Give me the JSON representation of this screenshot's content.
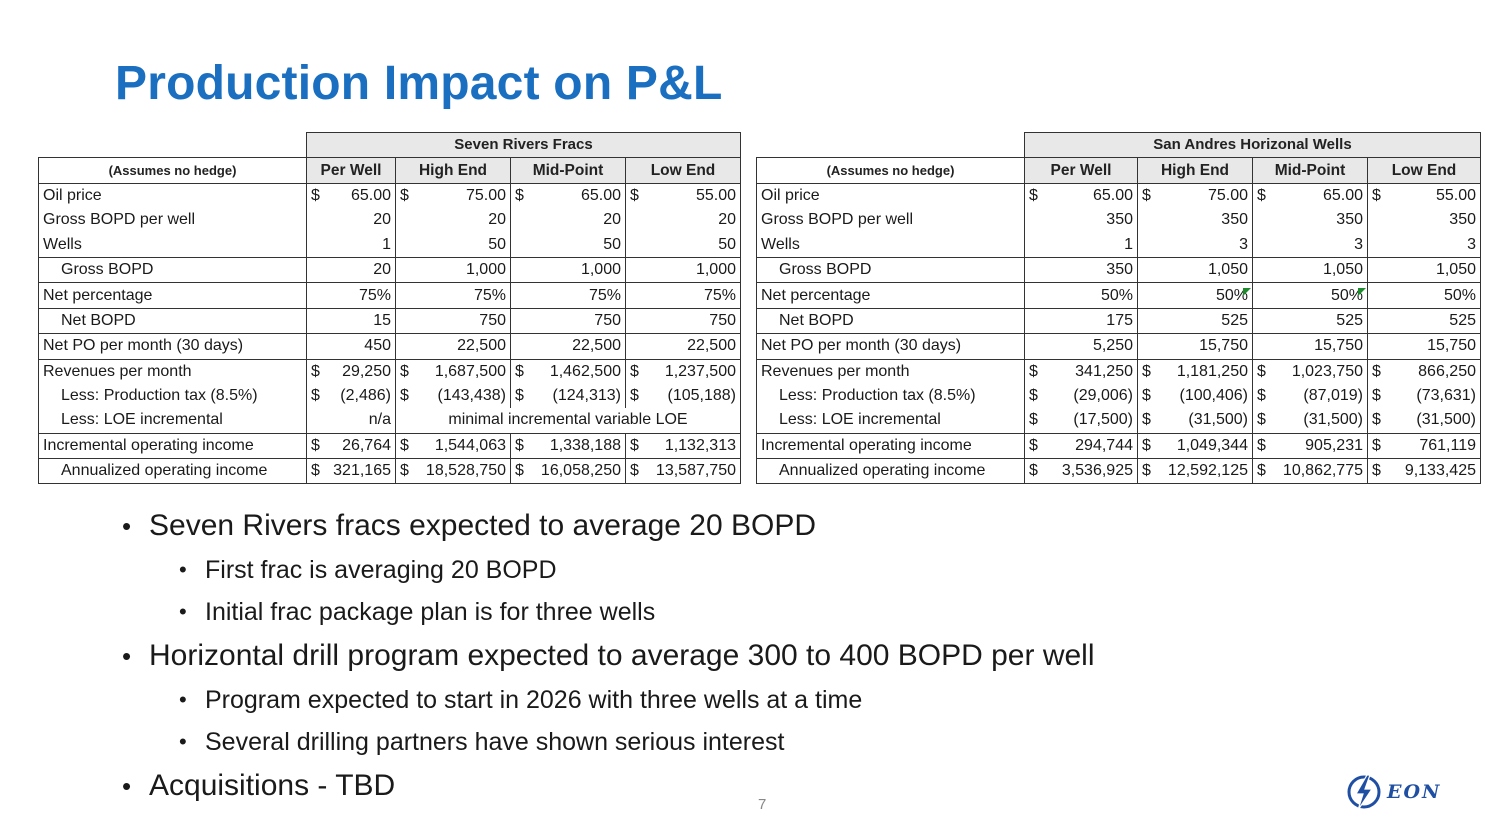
{
  "title": "Production Impact on P&L",
  "left_table": {
    "group_header": "Seven Rivers Fracs",
    "label_header": "(Assumes no hedge)",
    "columns": [
      "Per Well",
      "High End",
      "Mid-Point",
      "Low End"
    ],
    "rows": [
      {
        "label": "Oil price",
        "cells": [
          [
            "$",
            "65.00"
          ],
          [
            "$",
            "75.00"
          ],
          [
            "$",
            "65.00"
          ],
          [
            "$",
            "55.00"
          ]
        ]
      },
      {
        "label": "Gross BOPD per well",
        "cells": [
          [
            "",
            "20"
          ],
          [
            "",
            "20"
          ],
          [
            "",
            "20"
          ],
          [
            "",
            "20"
          ]
        ]
      },
      {
        "label": "Wells",
        "cells": [
          [
            "",
            "1"
          ],
          [
            "",
            "50"
          ],
          [
            "",
            "50"
          ],
          [
            "",
            "50"
          ]
        ]
      },
      {
        "label": "Gross BOPD",
        "cells": [
          [
            "",
            "20"
          ],
          [
            "",
            "1,000"
          ],
          [
            "",
            "1,000"
          ],
          [
            "",
            "1,000"
          ]
        ]
      },
      {
        "label": "Net percentage",
        "cells": [
          [
            "",
            "75%"
          ],
          [
            "",
            "75%"
          ],
          [
            "",
            "75%"
          ],
          [
            "",
            "75%"
          ]
        ]
      },
      {
        "label": "Net BOPD",
        "cells": [
          [
            "",
            "15"
          ],
          [
            "",
            "750"
          ],
          [
            "",
            "750"
          ],
          [
            "",
            "750"
          ]
        ]
      },
      {
        "label": "Net PO per month (30 days)",
        "cells": [
          [
            "",
            "450"
          ],
          [
            "",
            "22,500"
          ],
          [
            "",
            "22,500"
          ],
          [
            "",
            "22,500"
          ]
        ]
      },
      {
        "label": "Revenues per month",
        "cells": [
          [
            "$",
            "29,250"
          ],
          [
            "$",
            "1,687,500"
          ],
          [
            "$",
            "1,462,500"
          ],
          [
            "$",
            "1,237,500"
          ]
        ]
      },
      {
        "label": "Less: Production tax (8.5%)",
        "cells": [
          [
            "$",
            "(2,486)"
          ],
          [
            "$",
            "(143,438)"
          ],
          [
            "$",
            "(124,313)"
          ],
          [
            "$",
            "(105,188)"
          ]
        ]
      },
      {
        "label": "Less: LOE incremental",
        "cells": [
          [
            "",
            "n/a"
          ]
        ],
        "merged_text": "minimal incremental variable LOE"
      },
      {
        "label": "Incremental operating income",
        "cells": [
          [
            "$",
            "26,764"
          ],
          [
            "$",
            "1,544,063"
          ],
          [
            "$",
            "1,338,188"
          ],
          [
            "$",
            "1,132,313"
          ]
        ]
      },
      {
        "label": "Annualized operating income",
        "cells": [
          [
            "$",
            "321,165"
          ],
          [
            "$",
            "18,528,750"
          ],
          [
            "$",
            "16,058,250"
          ],
          [
            "$",
            "13,587,750"
          ]
        ]
      }
    ]
  },
  "right_table": {
    "group_header": "San Andres Horizonal Wells",
    "label_header": "(Assumes no hedge)",
    "columns": [
      "Per Well",
      "High End",
      "Mid-Point",
      "Low End"
    ],
    "rows": [
      {
        "label": "Oil price",
        "cells": [
          [
            "$",
            "65.00"
          ],
          [
            "$",
            "75.00"
          ],
          [
            "$",
            "65.00"
          ],
          [
            "$",
            "55.00"
          ]
        ]
      },
      {
        "label": "Gross BOPD per well",
        "cells": [
          [
            "",
            "350"
          ],
          [
            "",
            "350"
          ],
          [
            "",
            "350"
          ],
          [
            "",
            "350"
          ]
        ]
      },
      {
        "label": "Wells",
        "cells": [
          [
            "",
            "1"
          ],
          [
            "",
            "3"
          ],
          [
            "",
            "3"
          ],
          [
            "",
            "3"
          ]
        ]
      },
      {
        "label": "Gross BOPD",
        "cells": [
          [
            "",
            "350"
          ],
          [
            "",
            "1,050"
          ],
          [
            "",
            "1,050"
          ],
          [
            "",
            "1,050"
          ]
        ]
      },
      {
        "label": "Net percentage",
        "cells": [
          [
            "",
            "50%"
          ],
          [
            "",
            "50%"
          ],
          [
            "",
            "50%"
          ],
          [
            "",
            "50%"
          ]
        ]
      },
      {
        "label": "Net BOPD",
        "cells": [
          [
            "",
            "175"
          ],
          [
            "",
            "525"
          ],
          [
            "",
            "525"
          ],
          [
            "",
            "525"
          ]
        ]
      },
      {
        "label": "Net PO per month (30 days)",
        "cells": [
          [
            "",
            "5,250"
          ],
          [
            "",
            "15,750"
          ],
          [
            "",
            "15,750"
          ],
          [
            "",
            "15,750"
          ]
        ]
      },
      {
        "label": "Revenues per month",
        "cells": [
          [
            "$",
            "341,250"
          ],
          [
            "$",
            "1,181,250"
          ],
          [
            "$",
            "1,023,750"
          ],
          [
            "$",
            "866,250"
          ]
        ]
      },
      {
        "label": "Less: Production tax (8.5%)",
        "cells": [
          [
            "$",
            "(29,006)"
          ],
          [
            "$",
            "(100,406)"
          ],
          [
            "$",
            "(87,019)"
          ],
          [
            "$",
            "(73,631)"
          ]
        ]
      },
      {
        "label": "Less: LOE incremental",
        "cells": [
          [
            "$",
            "(17,500)"
          ],
          [
            "$",
            "(31,500)"
          ],
          [
            "$",
            "(31,500)"
          ],
          [
            "$",
            "(31,500)"
          ]
        ]
      },
      {
        "label": "Incremental operating income",
        "cells": [
          [
            "$",
            "294,744"
          ],
          [
            "$",
            "1,049,344"
          ],
          [
            "$",
            "905,231"
          ],
          [
            "$",
            "761,119"
          ]
        ]
      },
      {
        "label": "Annualized operating income",
        "cells": [
          [
            "$",
            "3,536,925"
          ],
          [
            "$",
            "12,592,125"
          ],
          [
            "$",
            "10,862,775"
          ],
          [
            "$",
            "9,133,425"
          ]
        ]
      }
    ]
  },
  "bullets": [
    {
      "level": 1,
      "text": "Seven Rivers fracs expected to average 20 BOPD"
    },
    {
      "level": 2,
      "text": "First frac is averaging 20 BOPD"
    },
    {
      "level": 2,
      "text": "Initial frac package plan is for three wells"
    },
    {
      "level": 1,
      "text": "Horizontal drill program expected to average 300 to 400 BOPD per well"
    },
    {
      "level": 2,
      "text": "Program expected to start in 2026 with three wells at a time"
    },
    {
      "level": 2,
      "text": "Several drilling partners have shown serious interest"
    },
    {
      "level": 1,
      "text": "Acquisitions - TBD"
    }
  ],
  "page_number": "7",
  "logo_text": "EON",
  "colors": {
    "title": "#1a6fc0",
    "header_fill": "#e8e8e8",
    "logo": "#1f4fa3",
    "error_mark": "#1e8c2e"
  }
}
